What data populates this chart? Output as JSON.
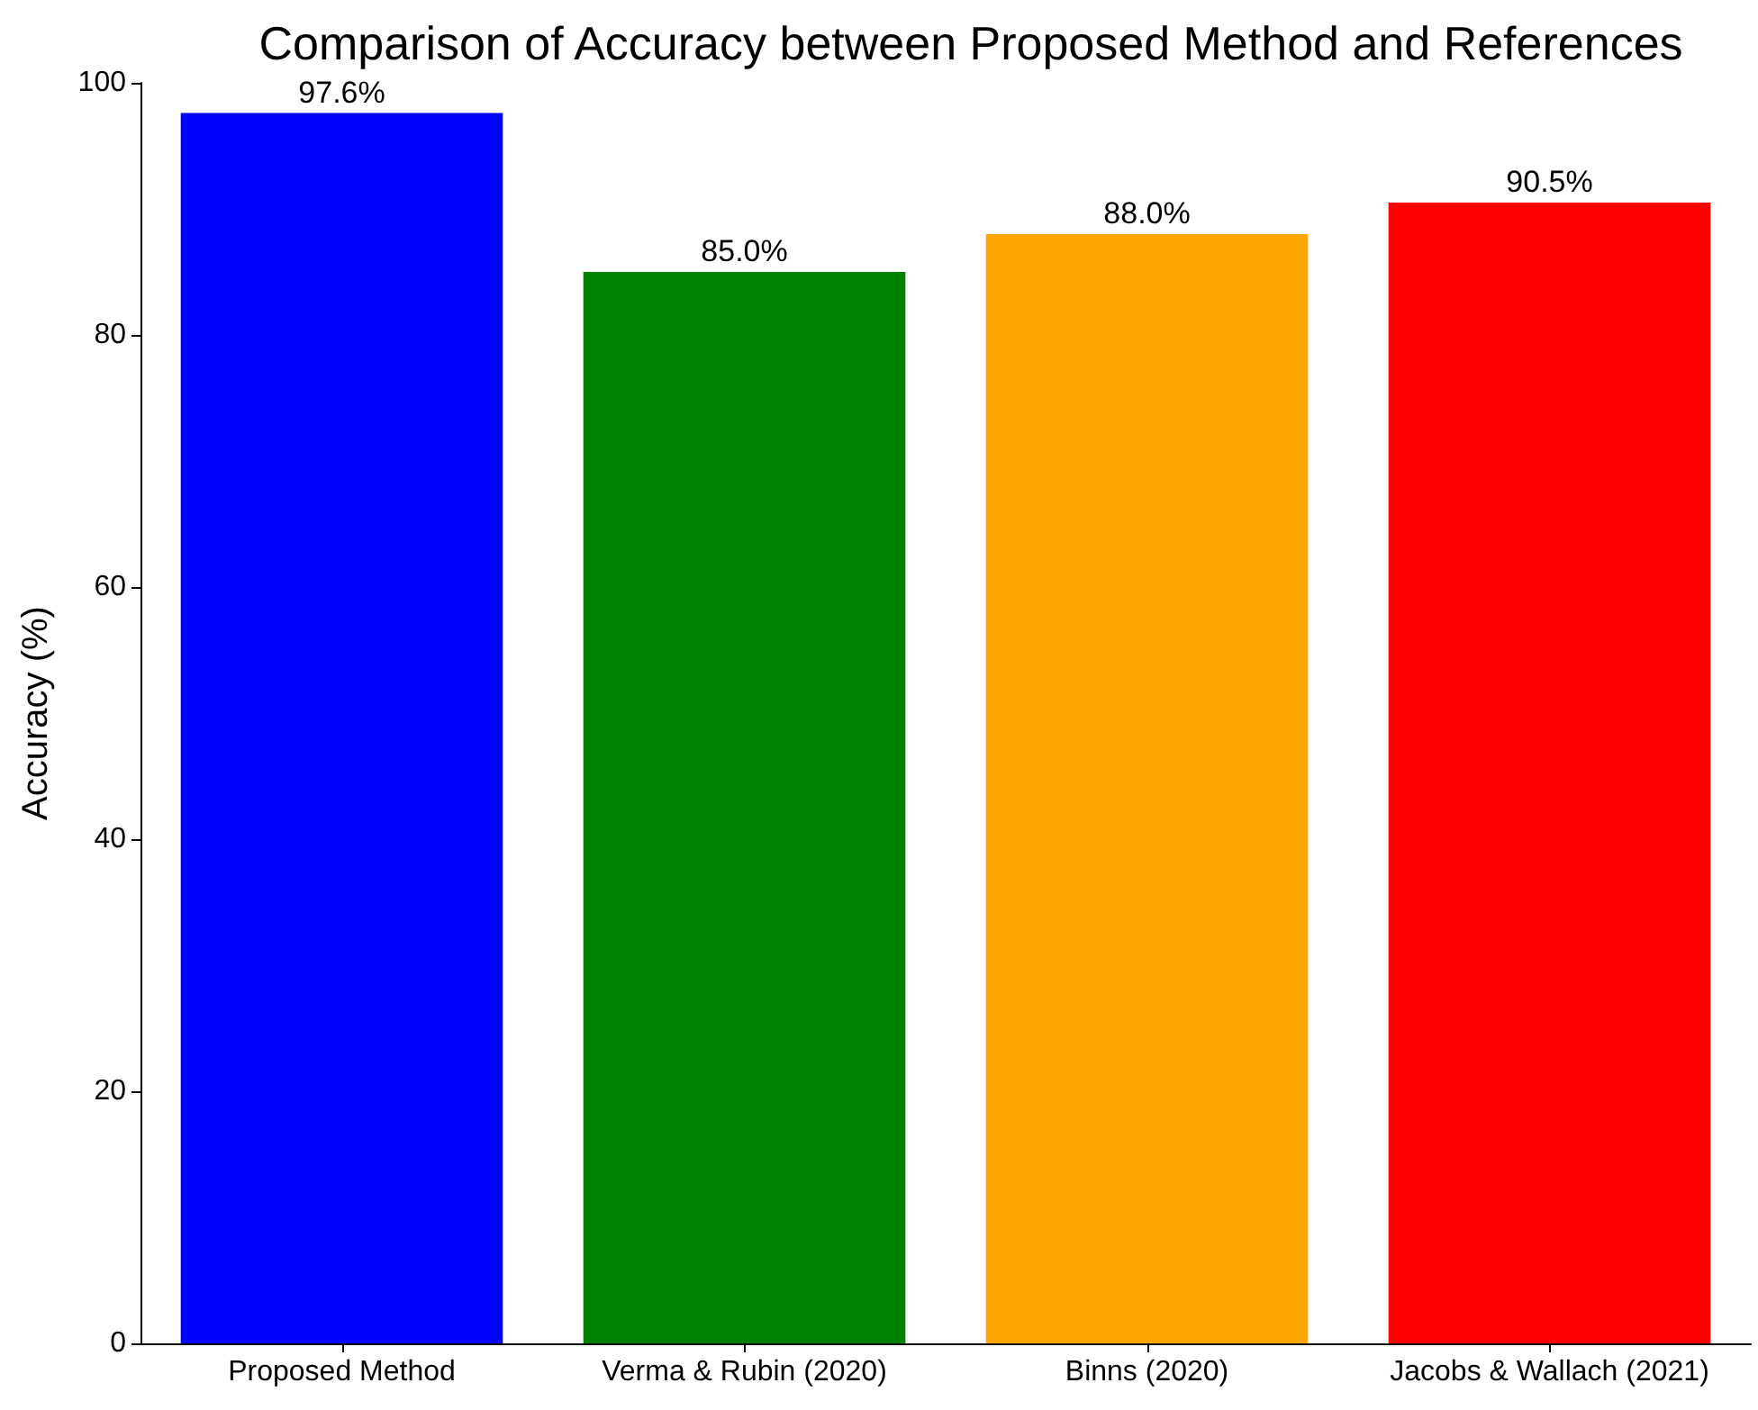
{
  "chart_data": {
    "type": "bar",
    "title": "Comparison of Accuracy between Proposed Method and References",
    "ylabel": "Accuracy (%)",
    "categories": [
      "Proposed Method",
      "Verma & Rubin (2020)",
      "Binns (2020)",
      "Jacobs & Wallach (2021)"
    ],
    "values": [
      97.6,
      85.0,
      88.0,
      90.5
    ],
    "colors": [
      "#0000ff",
      "#008000",
      "#ffa500",
      "#ff0000"
    ],
    "value_labels": [
      "97.6%",
      "85.0%",
      "88.0%",
      "90.5%"
    ],
    "ylim": [
      0,
      100
    ],
    "yticks": [
      0,
      20,
      40,
      60,
      80,
      100
    ],
    "grid": false
  }
}
